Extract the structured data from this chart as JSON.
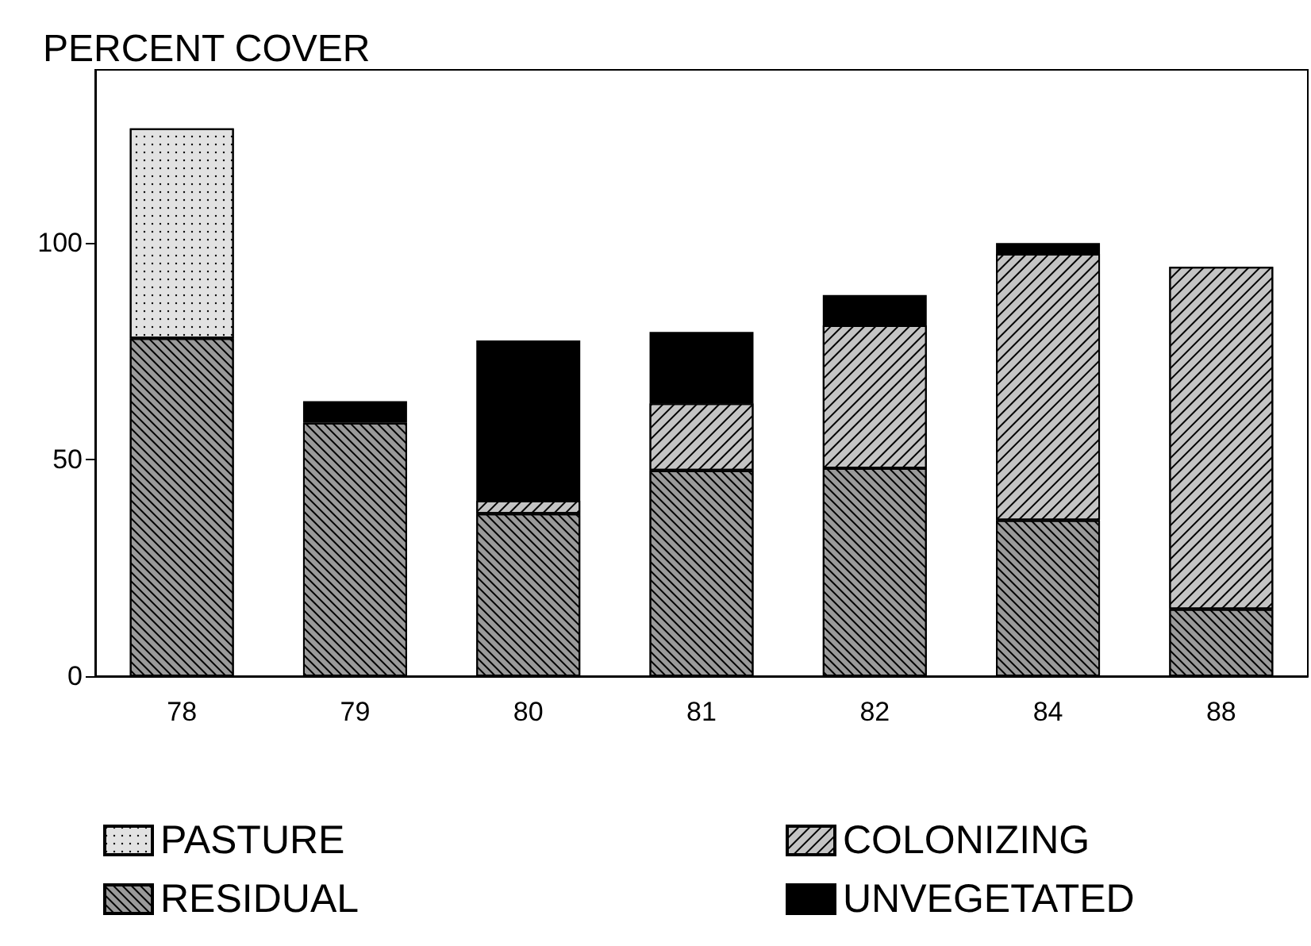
{
  "chart_data": {
    "type": "bar",
    "title": "PERCENT COVER",
    "stacked": true,
    "categories": [
      "78",
      "79",
      "80",
      "81",
      "82",
      "84",
      "88"
    ],
    "series": [
      {
        "name": "RESIDUAL",
        "color": "#9a9a9a",
        "values": [
          78,
          58.5,
          37.5,
          47.5,
          48,
          36,
          15.5
        ]
      },
      {
        "name": "COLONIZING",
        "color": "#c4c4c4",
        "values": [
          null,
          null,
          3,
          15.5,
          33,
          61.5,
          79
        ]
      },
      {
        "name": "UNVEGETATED",
        "color": "#000000",
        "values": [
          null,
          5,
          37,
          16.5,
          7,
          2.5,
          null
        ]
      },
      {
        "name": "PASTURE",
        "color": "#e2e2e2",
        "values": [
          48.5,
          null,
          null,
          null,
          null,
          null,
          null
        ]
      }
    ],
    "ylim": [
      0,
      140
    ],
    "yticks": [
      0,
      50,
      100
    ],
    "grid": false,
    "legend": "bottom"
  }
}
